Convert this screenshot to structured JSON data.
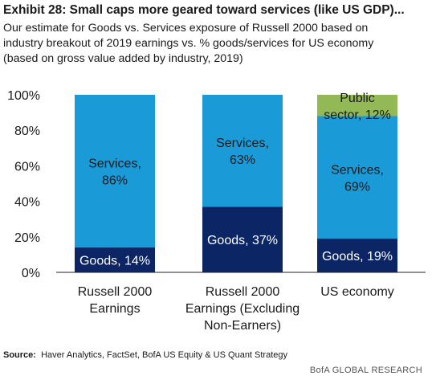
{
  "title": "Exhibit 28: Small caps more geared toward services (like US GDP)...",
  "subtitle": [
    "Our estimate for Goods vs. Services exposure of Russell 2000 based on",
    "industry breakout of 2019 earnings vs. % goods/services for US economy",
    "(based on gross value added by industry, 2019)"
  ],
  "source_label": "Source:",
  "source_text": "Haver Analytics, FactSet, BofA US Equity & US Quant Strategy",
  "brand": "BofA GLOBAL RESEARCH",
  "chart_data": {
    "type": "bar",
    "stacked": true,
    "categories": [
      [
        "Russell 2000",
        "Earnings"
      ],
      [
        "Russell 2000",
        "Earnings (Excluding",
        "Non-Earners)"
      ],
      [
        "US economy"
      ]
    ],
    "ylim": [
      0,
      100
    ],
    "yticks": [
      "0%",
      "20%",
      "40%",
      "60%",
      "80%",
      "100%"
    ],
    "grid": false,
    "legend": "none",
    "series": [
      {
        "key": "goods",
        "color": "#0b2565",
        "label_color": "#ffffff",
        "values": [
          14,
          37,
          19
        ],
        "labels": [
          [
            "Goods, 14%"
          ],
          [
            "Goods, 37%"
          ],
          [
            "Goods, 19%"
          ]
        ]
      },
      {
        "key": "services",
        "color": "#1b9ad8",
        "label_color": "#1a1a1a",
        "values": [
          86,
          63,
          69
        ],
        "labels": [
          [
            "Services,",
            "86%"
          ],
          [
            "Services,",
            "63%"
          ],
          [
            "Services,",
            "69%"
          ]
        ]
      },
      {
        "key": "public",
        "color": "#93b856",
        "label_color": "#1a1a1a",
        "values": [
          0,
          0,
          12
        ],
        "labels": [
          [],
          [],
          [
            "Public",
            "sector, 12%"
          ]
        ]
      }
    ]
  }
}
